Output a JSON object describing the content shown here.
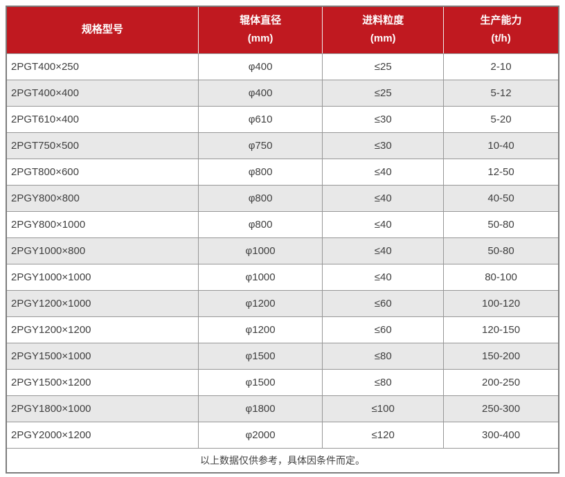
{
  "table": {
    "columns": [
      {
        "key": "model",
        "label": "规格型号",
        "unit": ""
      },
      {
        "key": "roller-diameter",
        "label": "辊体直径",
        "unit": "(mm)"
      },
      {
        "key": "feed-size",
        "label": "进料粒度",
        "unit": "(mm)"
      },
      {
        "key": "capacity",
        "label": "生产能力",
        "unit": "(t/h)"
      }
    ],
    "rows": [
      [
        "2PGT400×250",
        "φ400",
        "≤25",
        "2-10"
      ],
      [
        "2PGT400×400",
        "φ400",
        "≤25",
        "5-12"
      ],
      [
        "2PGT610×400",
        "φ610",
        "≤30",
        "5-20"
      ],
      [
        "2PGT750×500",
        "φ750",
        "≤30",
        "10-40"
      ],
      [
        "2PGT800×600",
        "φ800",
        "≤40",
        "12-50"
      ],
      [
        "2PGY800×800",
        "φ800",
        "≤40",
        "40-50"
      ],
      [
        "2PGY800×1000",
        "φ800",
        "≤40",
        "50-80"
      ],
      [
        "2PGY1000×800",
        "φ1000",
        "≤40",
        "50-80"
      ],
      [
        "2PGY1000×1000",
        "φ1000",
        "≤40",
        "80-100"
      ],
      [
        "2PGY1200×1000",
        "φ1200",
        "≤60",
        "100-120"
      ],
      [
        "2PGY1200×1200",
        "φ1200",
        "≤60",
        "120-150"
      ],
      [
        "2PGY1500×1000",
        "φ1500",
        "≤80",
        "150-200"
      ],
      [
        "2PGY1500×1200",
        "φ1500",
        "≤80",
        "200-250"
      ],
      [
        "2PGY1800×1000",
        "φ1800",
        "≤100",
        "250-300"
      ],
      [
        "2PGY2000×1200",
        "φ2000",
        "≤120",
        "300-400"
      ]
    ],
    "footer_note": "以上数据仅供参考，具体因条件而定。"
  },
  "colors": {
    "header_bg": "#c01920",
    "header_text": "#ffffff",
    "row_alt_bg": "#e8e8e8",
    "border": "#969696",
    "text": "#3f3f3f"
  }
}
